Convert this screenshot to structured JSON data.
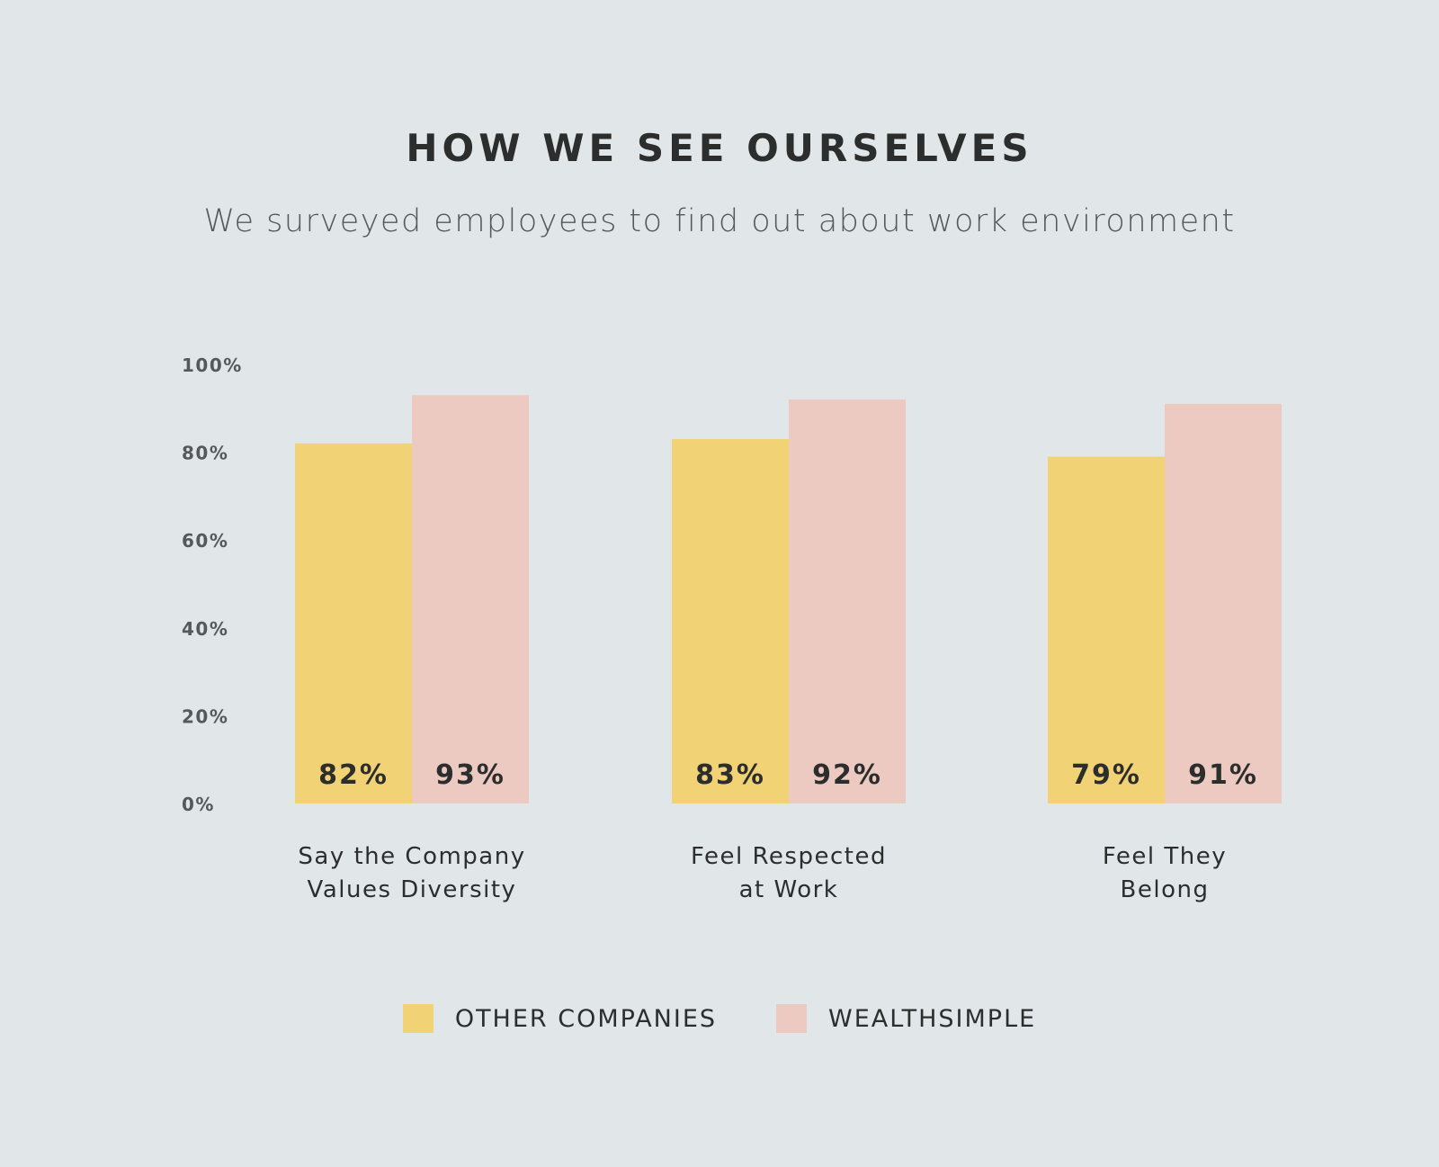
{
  "title": "HOW WE SEE OURSELVES",
  "subtitle": "We surveyed employees to find out about work environment",
  "colors": {
    "background": "#e1e7e9",
    "other_companies": "#f1d275",
    "wealthsimple": "#edcac1",
    "text_dark": "#2b2e2c",
    "text_axis": "#55595a"
  },
  "legend": [
    {
      "label": "OTHER COMPANIES",
      "color": "#f1d275"
    },
    {
      "label": "WEALTHSIMPLE",
      "color": "#edcac1"
    }
  ],
  "chart_data": {
    "type": "bar",
    "title": "HOW WE SEE OURSELVES",
    "subtitle": "We surveyed employees to find out about work environment",
    "categories": [
      [
        "Say the Company",
        "Values Diversity"
      ],
      [
        "Feel Respected",
        "at Work"
      ],
      [
        "Feel They",
        "Belong"
      ]
    ],
    "series": [
      {
        "name": "OTHER COMPANIES",
        "color": "#f1d275",
        "values": [
          82,
          83,
          79
        ],
        "labels": [
          "82%",
          "83%",
          "79%"
        ]
      },
      {
        "name": "WEALTHSIMPLE",
        "color": "#edcac1",
        "values": [
          93,
          92,
          91
        ],
        "labels": [
          "93%",
          "92%",
          "91%"
        ]
      }
    ],
    "yticks": [
      "0%",
      "20%",
      "40%",
      "60%",
      "80%",
      "100%"
    ],
    "ylim": [
      0,
      100
    ],
    "grid": false,
    "legend_position": "bottom",
    "xlabel": "",
    "ylabel": ""
  }
}
